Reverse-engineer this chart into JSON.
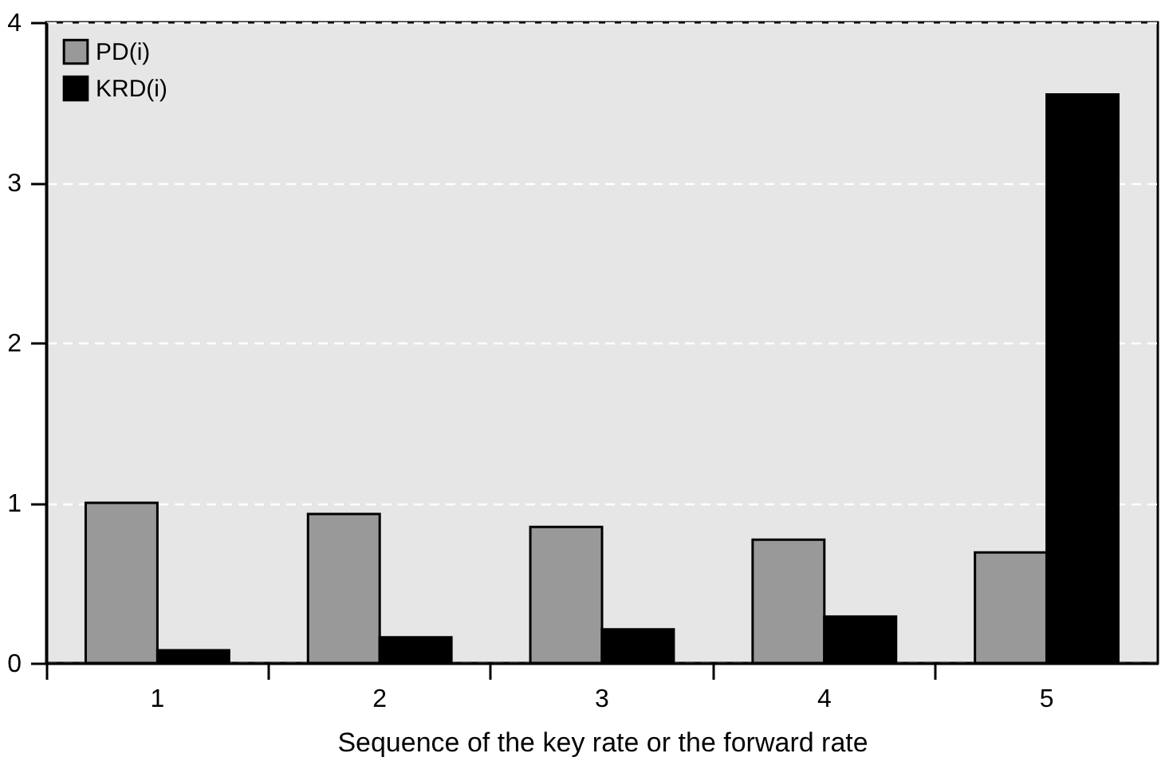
{
  "chart_data": {
    "type": "bar",
    "xlabel": "Sequence of the key rate or the forward rate",
    "categories": [
      "1",
      "2",
      "3",
      "4",
      "5"
    ],
    "series": [
      {
        "name": "PD(i)",
        "color": "#999999",
        "values": [
          1.0,
          0.93,
          0.85,
          0.77,
          0.69
        ]
      },
      {
        "name": "KRD(i)",
        "color": "#000000",
        "values": [
          0.08,
          0.16,
          0.21,
          0.29,
          3.55
        ]
      }
    ],
    "ylim": [
      0,
      4
    ],
    "yticks": [
      0,
      1,
      2,
      3,
      4
    ],
    "grid": "y",
    "legend": "top left"
  }
}
